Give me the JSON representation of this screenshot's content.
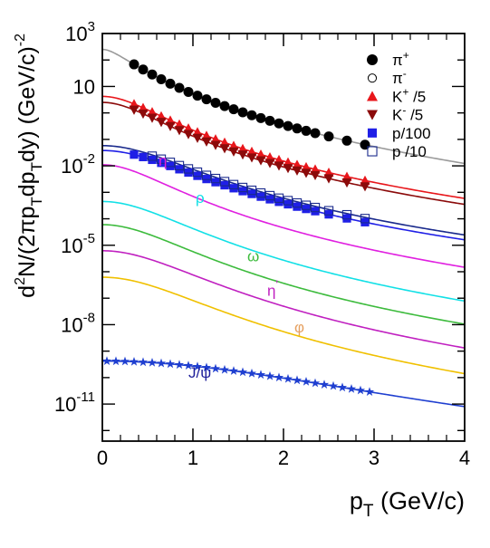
{
  "chart_data": {
    "type": "scatter",
    "x_axis": {
      "label_main": "p",
      "label_sub": "T",
      "label_rest": " (GeV/c)",
      "min": 0,
      "max": 4,
      "ticks": [
        {
          "value": 0,
          "label": "0"
        },
        {
          "value": 1,
          "label": "1"
        },
        {
          "value": 2,
          "label": "2"
        },
        {
          "value": 3,
          "label": "3"
        },
        {
          "value": 4,
          "label": "4"
        }
      ]
    },
    "y_axis": {
      "scale": "log",
      "min_exp": -12.4,
      "max_exp": 3,
      "label_parts": [
        "d",
        "2",
        "N/(2πp",
        "T",
        "dp",
        "T",
        "dy)  (GeV/c)",
        "-2"
      ],
      "ticks": [
        {
          "exp": 3,
          "base": "10",
          "sup": "3"
        },
        {
          "exp": 1,
          "base": "10",
          "sup": ""
        },
        {
          "exp": -2,
          "base": "10",
          "sup": "-2"
        },
        {
          "exp": -5,
          "base": "10",
          "sup": "-5"
        },
        {
          "exp": -8,
          "base": "10",
          "sup": "-8"
        },
        {
          "exp": -11,
          "base": "10",
          "sup": "-11"
        }
      ]
    },
    "legend": {
      "position": "top-right",
      "entries": [
        {
          "marker": "circle-filled",
          "color": "#000000",
          "base": "π",
          "sup": "+",
          "rest": ""
        },
        {
          "marker": "circle-open",
          "color": "#000000",
          "base": "π",
          "sup": "-",
          "rest": ""
        },
        {
          "marker": "triangle-up",
          "color": "#e8161b",
          "base": "K",
          "sup": "+",
          "rest": " /5"
        },
        {
          "marker": "triangle-down",
          "color": "#8b0a0a",
          "base": "K",
          "sup": "-",
          "rest": " /5"
        },
        {
          "marker": "square-filled",
          "color": "#1f1fe6",
          "base": "p/100",
          "sup": "",
          "rest": ""
        },
        {
          "marker": "square-open",
          "color": "#1a2a8c",
          "base": "p",
          "sup": "",
          "rest": " /10"
        }
      ]
    },
    "curves": [
      {
        "id": "pi",
        "color": "#9a9a9a",
        "A": 250,
        "T": 0.165,
        "n": 6.5,
        "m": 0.14
      },
      {
        "id": "kplus",
        "color": "#e8161b",
        "A": 4.2,
        "T": 0.16,
        "n": 5.5,
        "m": 0.494
      },
      {
        "id": "kminus",
        "color": "#8b0a0a",
        "A": 2.5,
        "T": 0.16,
        "n": 5.5,
        "m": 0.494
      },
      {
        "id": "pbar",
        "color": "#1a2a8c",
        "A": 0.058,
        "T": 0.17,
        "n": 5,
        "m": 0.938
      },
      {
        "id": "proton",
        "color": "#1f1fe6",
        "A": 0.038,
        "T": 0.17,
        "n": 5,
        "m": 0.938
      },
      {
        "id": "eta",
        "color": "#e020e0",
        "A": 0.011,
        "T": 0.17,
        "n": 6,
        "m": 0.548
      },
      {
        "id": "rho",
        "color": "#12e0e6",
        "A": 0.00045,
        "T": 0.17,
        "n": 6,
        "m": 0.775
      },
      {
        "id": "omega",
        "color": "#3dbb3d",
        "A": 6e-05,
        "T": 0.17,
        "n": 6,
        "m": 0.782
      },
      {
        "id": "etaprime",
        "color": "#c020c0",
        "A": 6.2e-06,
        "T": 0.17,
        "n": 6,
        "m": 0.958
      },
      {
        "id": "phi",
        "color": "#f0c000",
        "A": 6.2e-07,
        "T": 0.17,
        "n": 6,
        "m": 1.019
      },
      {
        "id": "jpsi",
        "color": "#1f3fd0",
        "A": 4.2e-10,
        "T": 0.35,
        "n": 6,
        "m": 3.097
      }
    ],
    "series": [
      {
        "id": "pi-plus-data",
        "marker": "circle-filled",
        "color": "#000000",
        "curve": "pi",
        "factor": 1.0,
        "x": [
          0.35,
          0.45,
          0.55,
          0.65,
          0.75,
          0.85,
          0.95,
          1.05,
          1.15,
          1.25,
          1.35,
          1.45,
          1.55,
          1.65,
          1.75,
          1.85,
          1.95,
          2.05,
          2.15,
          2.25,
          2.35,
          2.5,
          2.7,
          2.9
        ]
      },
      {
        "id": "k-plus-data",
        "marker": "triangle-up",
        "color": "#e8161b",
        "curve": "kplus",
        "factor": 1.0,
        "x": [
          0.35,
          0.45,
          0.55,
          0.65,
          0.75,
          0.85,
          0.95,
          1.05,
          1.15,
          1.25,
          1.35,
          1.45,
          1.55,
          1.65,
          1.75,
          1.85,
          1.95,
          2.05,
          2.15,
          2.25,
          2.35,
          2.5,
          2.7,
          2.9
        ]
      },
      {
        "id": "k-minus-data",
        "marker": "triangle-down",
        "color": "#8b0a0a",
        "curve": "kminus",
        "factor": 1.0,
        "x": [
          0.35,
          0.45,
          0.55,
          0.65,
          0.75,
          0.85,
          0.95,
          1.05,
          1.15,
          1.25,
          1.35,
          1.45,
          1.55,
          1.65,
          1.75,
          1.85,
          1.95,
          2.05,
          2.15,
          2.25,
          2.35,
          2.5,
          2.7,
          2.9
        ]
      },
      {
        "id": "p-data",
        "marker": "square-filled",
        "color": "#1f1fe6",
        "curve": "proton",
        "factor": 1.0,
        "x": [
          0.35,
          0.45,
          0.55,
          0.65,
          0.75,
          0.85,
          0.95,
          1.05,
          1.15,
          1.25,
          1.35,
          1.45,
          1.55,
          1.65,
          1.75,
          1.85,
          1.95,
          2.05,
          2.15,
          2.25,
          2.35,
          2.5,
          2.7,
          2.9
        ]
      },
      {
        "id": "pbar-data",
        "marker": "square-open",
        "color": "#1a2a8c",
        "curve": "pbar",
        "factor": 0.9,
        "x": [
          0.55,
          0.65,
          0.75,
          0.85,
          0.95,
          1.05,
          1.15,
          1.25,
          1.35,
          1.45,
          1.55,
          1.65,
          1.75,
          1.85,
          1.95,
          2.05,
          2.15,
          2.25,
          2.35,
          2.5,
          2.7,
          2.9
        ]
      },
      {
        "id": "jpsi-data",
        "marker": "star",
        "color": "#1f3fd0",
        "curve": "jpsi",
        "factor": 1.0,
        "x": [
          0.05,
          0.15,
          0.25,
          0.35,
          0.45,
          0.55,
          0.65,
          0.75,
          0.85,
          0.95,
          1.05,
          1.15,
          1.25,
          1.35,
          1.45,
          1.55,
          1.65,
          1.75,
          1.85,
          1.95,
          2.05,
          2.15,
          2.25,
          2.35,
          2.45,
          2.55,
          2.65,
          2.75,
          2.85,
          2.95
        ]
      }
    ],
    "curve_labels": [
      {
        "id": "label-eta",
        "base": "η",
        "sup": "",
        "color": "#e020e0",
        "x": 0.62,
        "exp": -2.0
      },
      {
        "id": "label-rho",
        "base": "ρ",
        "sup": "",
        "color": "#12e0e6",
        "x": 1.03,
        "exp": -3.4
      },
      {
        "id": "label-omega",
        "base": "ω",
        "sup": "",
        "color": "#3dbb3d",
        "x": 1.6,
        "exp": -5.6
      },
      {
        "id": "label-etaprime",
        "base": "η",
        "sup": "'",
        "color": "#c020c0",
        "x": 1.82,
        "exp": -6.9
      },
      {
        "id": "label-phi",
        "base": "φ",
        "sup": "",
        "color": "#e6a060",
        "x": 2.12,
        "exp": -8.3
      },
      {
        "id": "label-jpsi",
        "base": "J/ψ",
        "sup": "",
        "color": "#1f1f9a",
        "x": 0.95,
        "exp": -10.0
      }
    ]
  }
}
